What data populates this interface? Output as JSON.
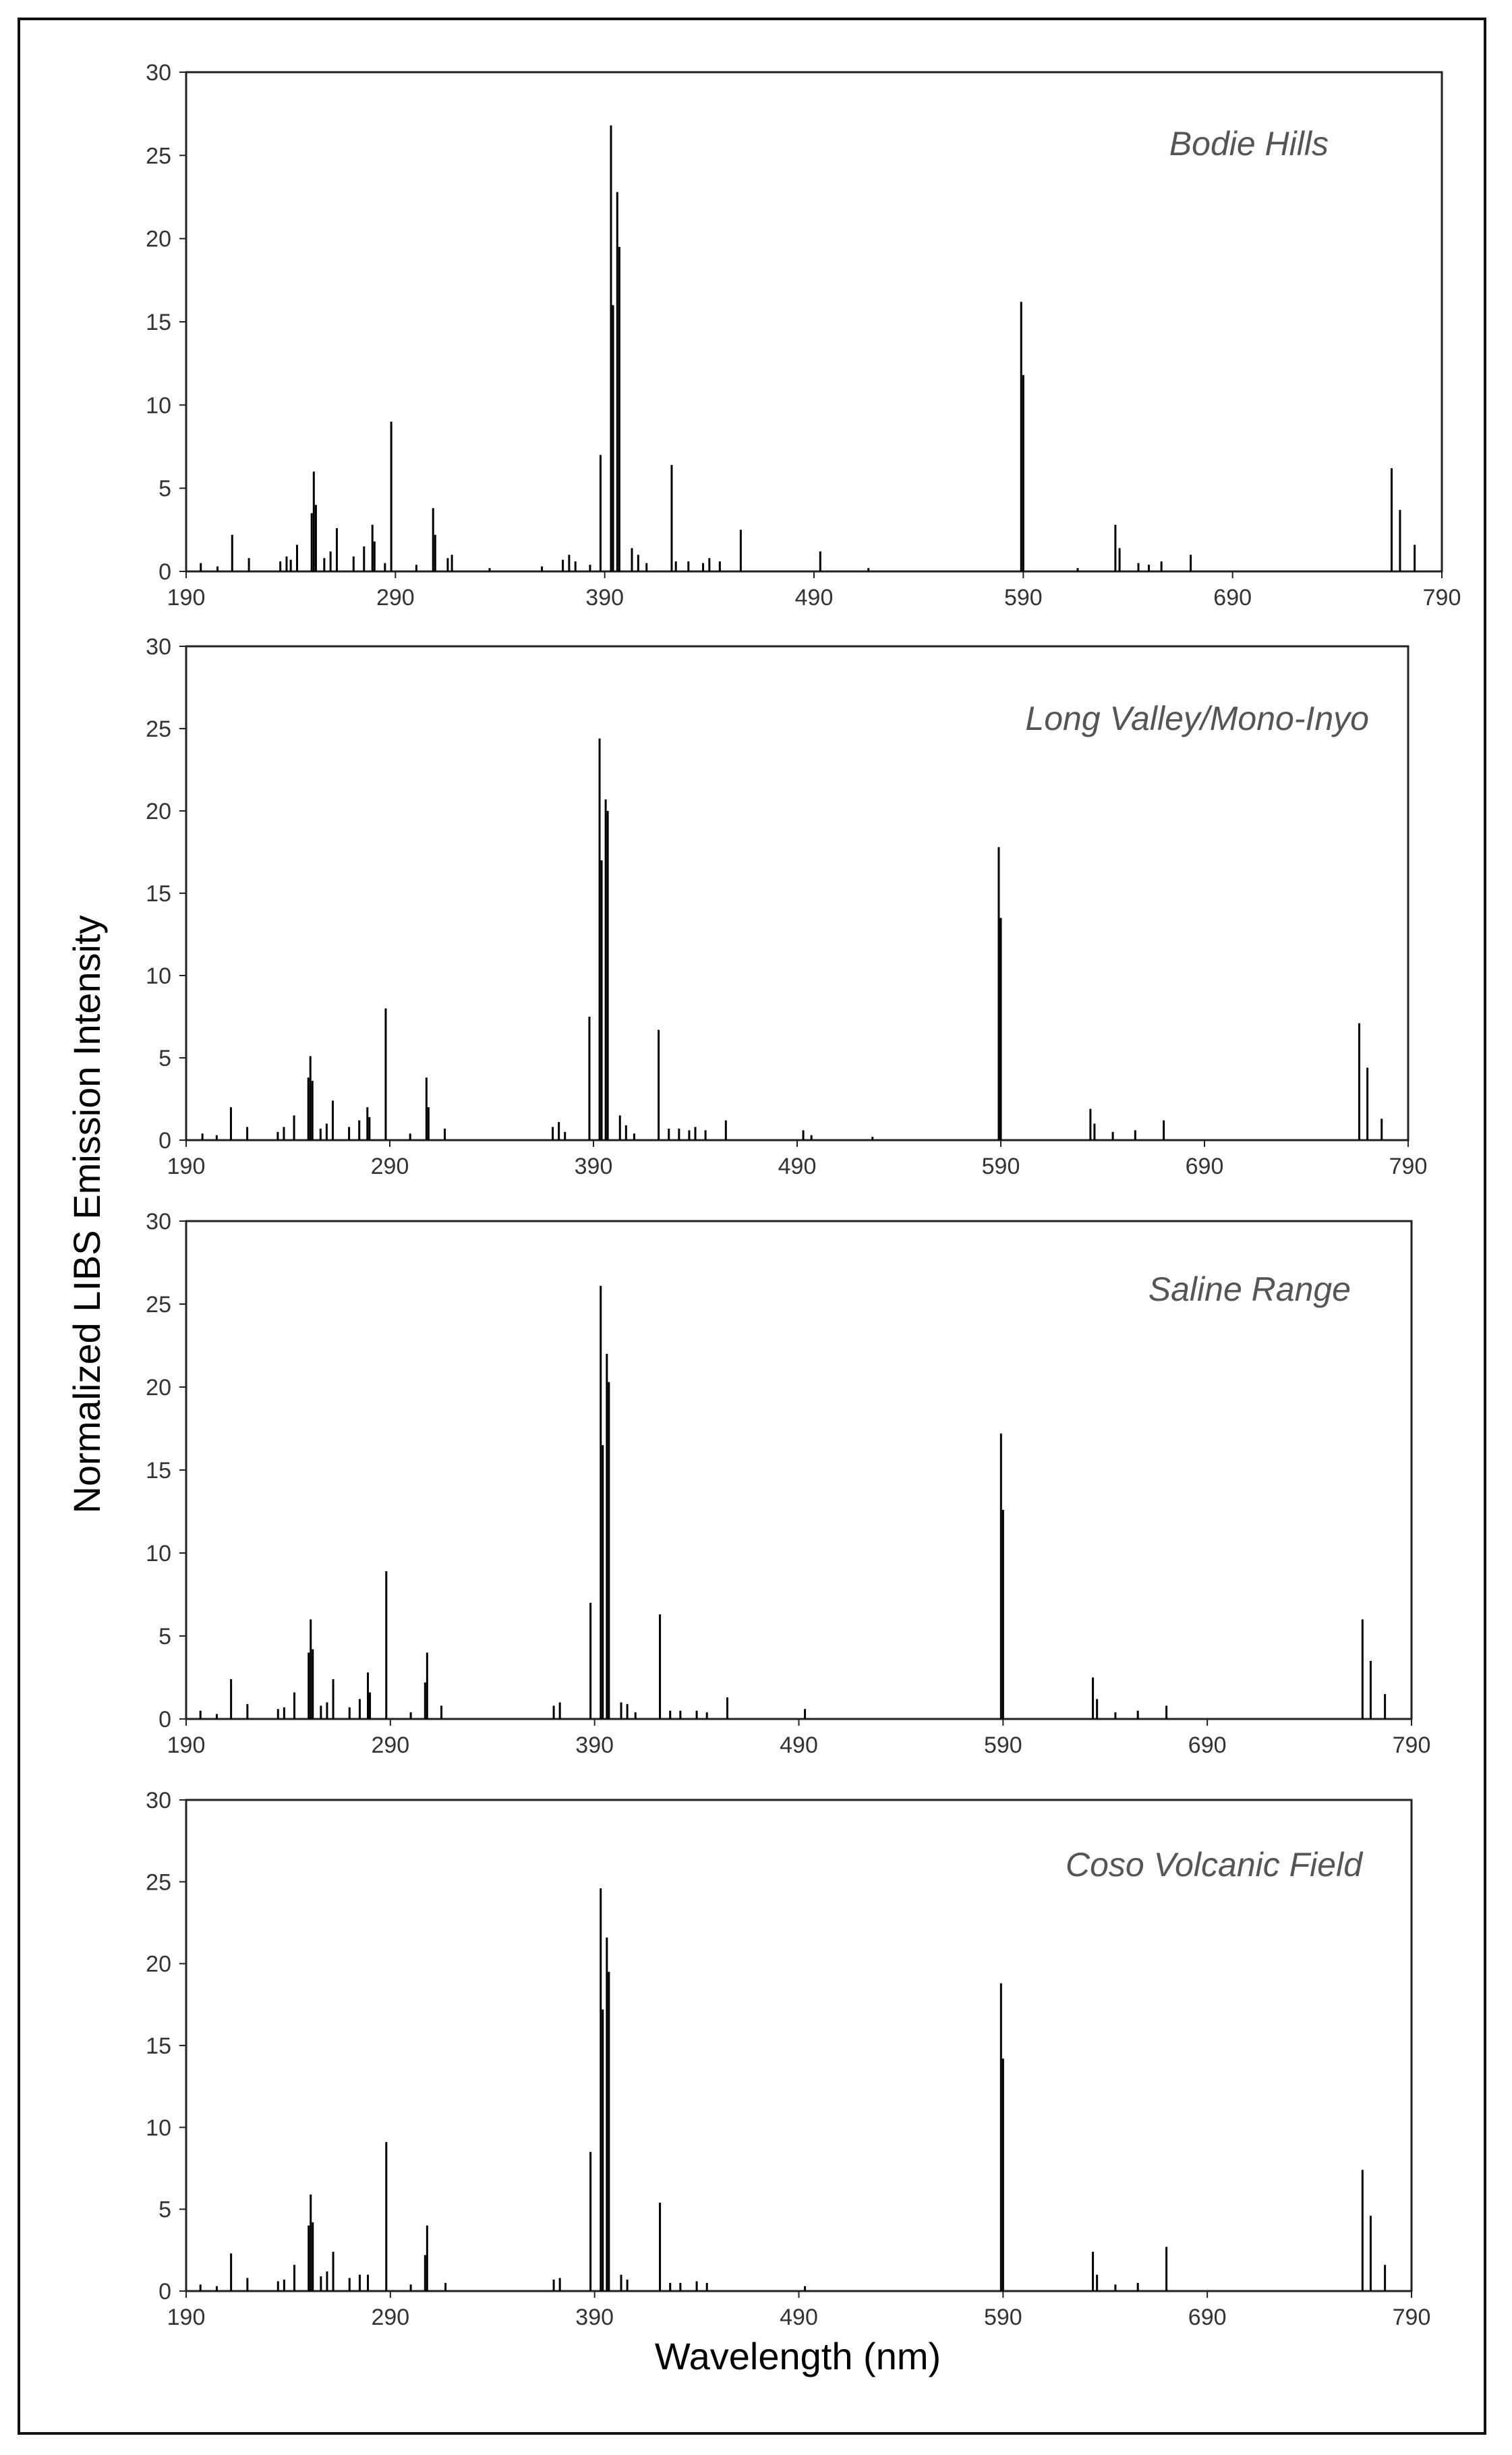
{
  "figure": {
    "ylabel": "Normalized LIBS Emission Intensity",
    "xlabel": "Wavelength (nm)"
  },
  "chart_data": [
    {
      "type": "bar",
      "title": "Bodie Hills",
      "xlim": [
        190,
        790
      ],
      "ylim": [
        0,
        30
      ],
      "xticks": [
        190,
        290,
        390,
        490,
        590,
        690,
        790
      ],
      "yticks": [
        0,
        5,
        10,
        15,
        20,
        25,
        30
      ],
      "peaks": [
        [
          197,
          0.5
        ],
        [
          205,
          0.3
        ],
        [
          212,
          2.2
        ],
        [
          220,
          0.8
        ],
        [
          235,
          0.6
        ],
        [
          238,
          0.9
        ],
        [
          240,
          0.7
        ],
        [
          243,
          1.6
        ],
        [
          250,
          3.5
        ],
        [
          251,
          6.0
        ],
        [
          252,
          4.0
        ],
        [
          256,
          0.8
        ],
        [
          259,
          1.2
        ],
        [
          262,
          2.6
        ],
        [
          270,
          0.9
        ],
        [
          275,
          1.5
        ],
        [
          279,
          2.8
        ],
        [
          280,
          1.8
        ],
        [
          285,
          0.5
        ],
        [
          288,
          9.0
        ],
        [
          300,
          0.4
        ],
        [
          308,
          3.8
        ],
        [
          309,
          2.2
        ],
        [
          315,
          0.8
        ],
        [
          317,
          1.0
        ],
        [
          335,
          0.2
        ],
        [
          360,
          0.3
        ],
        [
          370,
          0.7
        ],
        [
          373,
          1.0
        ],
        [
          376,
          0.6
        ],
        [
          383,
          0.4
        ],
        [
          388,
          7.0
        ],
        [
          393,
          26.8
        ],
        [
          394,
          16.0
        ],
        [
          396,
          22.8
        ],
        [
          397,
          19.5
        ],
        [
          403,
          1.4
        ],
        [
          406,
          1.0
        ],
        [
          410,
          0.5
        ],
        [
          422,
          6.4
        ],
        [
          424,
          0.6
        ],
        [
          430,
          0.6
        ],
        [
          437,
          0.5
        ],
        [
          440,
          0.8
        ],
        [
          445,
          0.6
        ],
        [
          455,
          2.5
        ],
        [
          493,
          1.2
        ],
        [
          516,
          0.2
        ],
        [
          589,
          16.2
        ],
        [
          590,
          11.8
        ],
        [
          616,
          0.2
        ],
        [
          634,
          2.8
        ],
        [
          636,
          1.4
        ],
        [
          645,
          0.5
        ],
        [
          650,
          0.4
        ],
        [
          656,
          0.6
        ],
        [
          670,
          1.0
        ],
        [
          766,
          6.2
        ],
        [
          770,
          3.7
        ],
        [
          777,
          1.6
        ]
      ]
    },
    {
      "type": "bar",
      "title": "Long Valley/Mono-Inyo",
      "xlim": [
        190,
        790
      ],
      "ylim": [
        0,
        30
      ],
      "xticks": [
        190,
        290,
        390,
        490,
        590,
        690,
        790
      ],
      "yticks": [
        0,
        5,
        10,
        15,
        20,
        25,
        30
      ],
      "peaks": [
        [
          198,
          0.4
        ],
        [
          205,
          0.3
        ],
        [
          212,
          2.0
        ],
        [
          220,
          0.8
        ],
        [
          235,
          0.5
        ],
        [
          238,
          0.8
        ],
        [
          243,
          1.5
        ],
        [
          250,
          3.8
        ],
        [
          251,
          5.1
        ],
        [
          252,
          3.6
        ],
        [
          256,
          0.7
        ],
        [
          259,
          1.0
        ],
        [
          262,
          2.4
        ],
        [
          270,
          0.8
        ],
        [
          275,
          1.2
        ],
        [
          279,
          2.0
        ],
        [
          280,
          1.4
        ],
        [
          288,
          8.0
        ],
        [
          300,
          0.4
        ],
        [
          308,
          3.8
        ],
        [
          309,
          2.0
        ],
        [
          317,
          0.7
        ],
        [
          370,
          0.8
        ],
        [
          373,
          1.1
        ],
        [
          376,
          0.5
        ],
        [
          388,
          7.5
        ],
        [
          393,
          24.4
        ],
        [
          394,
          17.0
        ],
        [
          396,
          20.7
        ],
        [
          397,
          20.0
        ],
        [
          403,
          1.5
        ],
        [
          406,
          0.9
        ],
        [
          410,
          0.4
        ],
        [
          422,
          6.7
        ],
        [
          427,
          0.7
        ],
        [
          432,
          0.7
        ],
        [
          437,
          0.6
        ],
        [
          440,
          0.8
        ],
        [
          445,
          0.6
        ],
        [
          455,
          1.2
        ],
        [
          493,
          0.6
        ],
        [
          497,
          0.3
        ],
        [
          527,
          0.2
        ],
        [
          589,
          17.8
        ],
        [
          590,
          13.5
        ],
        [
          634,
          1.9
        ],
        [
          636,
          1.0
        ],
        [
          645,
          0.5
        ],
        [
          656,
          0.6
        ],
        [
          670,
          1.2
        ],
        [
          766,
          7.1
        ],
        [
          770,
          4.4
        ],
        [
          777,
          1.3
        ]
      ]
    },
    {
      "type": "bar",
      "title": "Saline Range",
      "xlim": [
        190,
        790
      ],
      "ylim": [
        0,
        30
      ],
      "xticks": [
        190,
        290,
        390,
        490,
        590,
        690,
        790
      ],
      "yticks": [
        0,
        5,
        10,
        15,
        20,
        25,
        30
      ],
      "peaks": [
        [
          197,
          0.5
        ],
        [
          205,
          0.3
        ],
        [
          212,
          2.4
        ],
        [
          220,
          0.9
        ],
        [
          235,
          0.6
        ],
        [
          238,
          0.7
        ],
        [
          243,
          1.6
        ],
        [
          250,
          4.0
        ],
        [
          251,
          6.0
        ],
        [
          252,
          4.2
        ],
        [
          256,
          0.8
        ],
        [
          259,
          1.0
        ],
        [
          262,
          2.4
        ],
        [
          270,
          0.7
        ],
        [
          275,
          1.2
        ],
        [
          279,
          2.8
        ],
        [
          280,
          1.6
        ],
        [
          288,
          8.9
        ],
        [
          300,
          0.4
        ],
        [
          307,
          2.2
        ],
        [
          308,
          4.0
        ],
        [
          315,
          0.8
        ],
        [
          370,
          0.8
        ],
        [
          373,
          1.0
        ],
        [
          388,
          7.0
        ],
        [
          393,
          26.1
        ],
        [
          394,
          16.5
        ],
        [
          396,
          22.0
        ],
        [
          397,
          20.3
        ],
        [
          403,
          1.0
        ],
        [
          406,
          0.9
        ],
        [
          410,
          0.4
        ],
        [
          422,
          6.3
        ],
        [
          427,
          0.5
        ],
        [
          432,
          0.5
        ],
        [
          440,
          0.5
        ],
        [
          445,
          0.4
        ],
        [
          455,
          1.3
        ],
        [
          493,
          0.6
        ],
        [
          589,
          17.2
        ],
        [
          590,
          12.6
        ],
        [
          634,
          2.5
        ],
        [
          636,
          1.2
        ],
        [
          645,
          0.4
        ],
        [
          656,
          0.5
        ],
        [
          670,
          0.8
        ],
        [
          766,
          6.0
        ],
        [
          770,
          3.5
        ],
        [
          777,
          1.5
        ]
      ]
    },
    {
      "type": "bar",
      "title": "Coso Volcanic Field",
      "xlim": [
        190,
        790
      ],
      "ylim": [
        0,
        30
      ],
      "xticks": [
        190,
        290,
        390,
        490,
        590,
        690,
        790
      ],
      "yticks": [
        0,
        5,
        10,
        15,
        20,
        25,
        30
      ],
      "peaks": [
        [
          197,
          0.4
        ],
        [
          205,
          0.3
        ],
        [
          212,
          2.3
        ],
        [
          220,
          0.8
        ],
        [
          235,
          0.6
        ],
        [
          238,
          0.7
        ],
        [
          243,
          1.6
        ],
        [
          250,
          4.0
        ],
        [
          251,
          5.9
        ],
        [
          252,
          4.2
        ],
        [
          256,
          0.9
        ],
        [
          259,
          1.2
        ],
        [
          262,
          2.4
        ],
        [
          270,
          0.8
        ],
        [
          275,
          1.0
        ],
        [
          279,
          1.0
        ],
        [
          288,
          9.1
        ],
        [
          300,
          0.4
        ],
        [
          307,
          2.2
        ],
        [
          308,
          4.0
        ],
        [
          317,
          0.5
        ],
        [
          370,
          0.7
        ],
        [
          373,
          0.8
        ],
        [
          388,
          8.5
        ],
        [
          393,
          24.6
        ],
        [
          394,
          17.2
        ],
        [
          396,
          21.6
        ],
        [
          397,
          19.5
        ],
        [
          403,
          1.0
        ],
        [
          406,
          0.7
        ],
        [
          422,
          5.4
        ],
        [
          427,
          0.5
        ],
        [
          432,
          0.5
        ],
        [
          440,
          0.6
        ],
        [
          445,
          0.5
        ],
        [
          493,
          0.3
        ],
        [
          589,
          18.8
        ],
        [
          590,
          14.2
        ],
        [
          634,
          2.4
        ],
        [
          636,
          1.0
        ],
        [
          645,
          0.4
        ],
        [
          656,
          0.5
        ],
        [
          670,
          2.7
        ],
        [
          766,
          7.4
        ],
        [
          770,
          4.6
        ],
        [
          777,
          1.6
        ]
      ]
    }
  ]
}
